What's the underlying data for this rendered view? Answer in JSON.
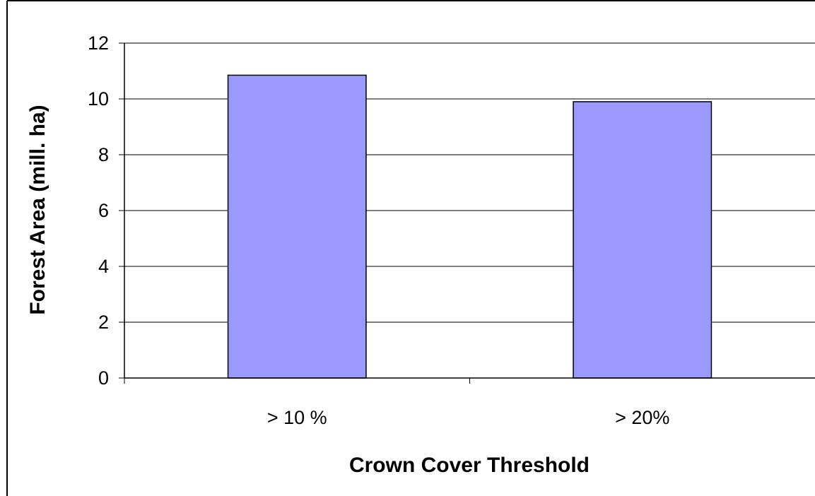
{
  "chart_data": {
    "type": "bar",
    "title": "",
    "xlabel": "Crown Cover Threshold",
    "ylabel": "Forest Area (mill. ha)",
    "categories": [
      "> 10 %",
      "> 20%"
    ],
    "values": [
      10.85,
      9.9
    ],
    "ylim": [
      0,
      12
    ],
    "yticks": [
      "0",
      "2",
      "4",
      "6",
      "8",
      "10",
      "12"
    ],
    "grid": true,
    "legend": "none",
    "bar_color": "#9999ff",
    "bar_edge_color": "#000000"
  }
}
